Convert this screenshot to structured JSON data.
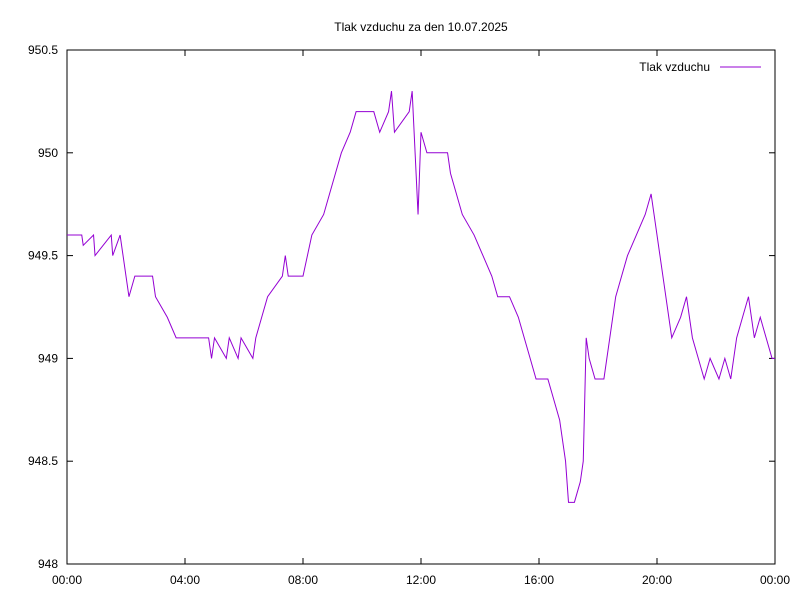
{
  "chart_data": {
    "type": "line",
    "title": "Tlak vzduchu za den 10.07.2025",
    "x": [
      0,
      0.5,
      0.55,
      0.9,
      0.95,
      1.5,
      1.55,
      1.8,
      1.9,
      2.0,
      2.1,
      2.3,
      2.9,
      3.0,
      3.4,
      3.7,
      4.8,
      4.9,
      5.0,
      5.4,
      5.5,
      5.8,
      5.9,
      6.3,
      6.4,
      6.6,
      6.8,
      7.3,
      7.4,
      7.5,
      8.0,
      8.3,
      8.7,
      8.9,
      9.1,
      9.3,
      9.6,
      9.8,
      10.4,
      10.6,
      10.9,
      11.0,
      11.1,
      11.6,
      11.7,
      11.8,
      11.9,
      12.0,
      12.2,
      12.9,
      13.0,
      13.2,
      13.4,
      13.8,
      14.1,
      14.4,
      14.6,
      15.0,
      15.3,
      15.5,
      15.7,
      15.9,
      16.3,
      16.5,
      16.7,
      16.8,
      16.9,
      17.0,
      17.2,
      17.4,
      17.5,
      17.6,
      17.7,
      17.9,
      18.2,
      18.4,
      18.6,
      18.8,
      19.0,
      19.3,
      19.6,
      19.8,
      19.9,
      20.1,
      20.3,
      20.5,
      20.8,
      21.0,
      21.2,
      21.4,
      21.6,
      21.8,
      22.1,
      22.3,
      22.5,
      22.7,
      22.9,
      23.1,
      23.3,
      23.5,
      23.7,
      23.9,
      24
    ],
    "series": [
      {
        "name": "Tlak vzduchu",
        "color": "#9400d3",
        "values": [
          949.6,
          949.6,
          949.55,
          949.6,
          949.5,
          949.6,
          949.5,
          949.6,
          949.5,
          949.4,
          949.3,
          949.4,
          949.4,
          949.3,
          949.2,
          949.1,
          949.1,
          949.0,
          949.1,
          949.0,
          949.1,
          949.0,
          949.1,
          949.0,
          949.1,
          949.2,
          949.3,
          949.4,
          949.5,
          949.4,
          949.4,
          949.6,
          949.7,
          949.8,
          949.9,
          950.0,
          950.1,
          950.2,
          950.2,
          950.1,
          950.2,
          950.3,
          950.1,
          950.2,
          950.3,
          950.0,
          949.7,
          950.1,
          950.0,
          950.0,
          949.9,
          949.8,
          949.7,
          949.6,
          949.5,
          949.4,
          949.3,
          949.3,
          949.2,
          949.1,
          949.0,
          948.9,
          948.9,
          948.8,
          948.7,
          948.6,
          948.5,
          948.3,
          948.3,
          948.4,
          948.5,
          949.1,
          949.0,
          948.9,
          948.9,
          949.1,
          949.3,
          949.4,
          949.5,
          949.6,
          949.7,
          949.8,
          949.7,
          949.5,
          949.3,
          949.1,
          949.2,
          949.3,
          949.1,
          949.0,
          948.9,
          949.0,
          948.9,
          949.0,
          948.9,
          949.1,
          949.2,
          949.3,
          949.1,
          949.2,
          949.1,
          949.0,
          949.0
        ]
      }
    ],
    "xlim": [
      0,
      24
    ],
    "xticks": [
      {
        "value": 0,
        "label": "00:00"
      },
      {
        "value": 4,
        "label": "04:00"
      },
      {
        "value": 8,
        "label": "08:00"
      },
      {
        "value": 12,
        "label": "12:00"
      },
      {
        "value": 16,
        "label": "16:00"
      },
      {
        "value": 20,
        "label": "20:00"
      },
      {
        "value": 24,
        "label": "00:00"
      }
    ],
    "ylim": [
      948,
      950.5
    ],
    "yticks": [
      948,
      948.5,
      949,
      949.5,
      950,
      950.5
    ],
    "legend": "top-right"
  }
}
